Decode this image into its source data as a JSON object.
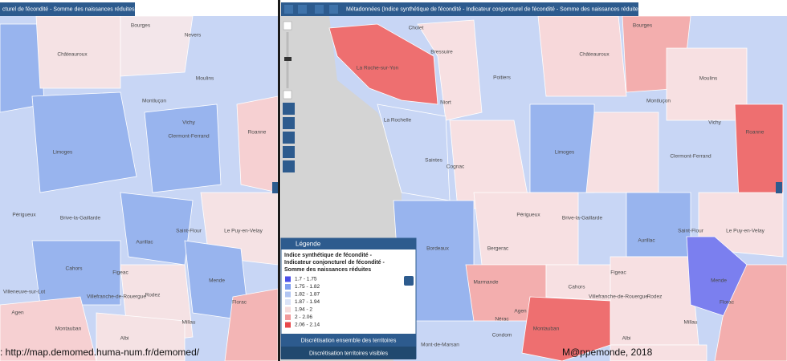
{
  "left_toolbar": {
    "title": "cturel de fécondité - Somme des naissances réduites)"
  },
  "right_toolbar": {
    "title": "Métadonnées (Indice synthétique de fécondité - Indicateur conjoncturel de fécondité - Somme des naissances réduites)"
  },
  "left_map": {
    "places": [
      "Bourges",
      "Nevers",
      "Châteauroux",
      "Moulins",
      "Montluçon",
      "Vichy",
      "Roanne",
      "Limoges",
      "Clermont-Ferrand",
      "Périgueux",
      "Brive-la-Gaillarde",
      "Aurillac",
      "Saint-Flour",
      "Le Puy-en-Velay",
      "Cahors",
      "Mende",
      "Rodez",
      "Villeneuve-sur-Lot",
      "Villefranche-de-Rouergue",
      "Agen",
      "Montauban",
      "Albi",
      "Millau",
      "Florac",
      "Figeac"
    ]
  },
  "right_map": {
    "places": [
      "Cholet",
      "La Roche-sur-Yon",
      "Bressuire",
      "Niort",
      "Poitiers",
      "Châteauroux",
      "Bourges",
      "Moulins",
      "Montluçon",
      "Vichy",
      "La Rochelle",
      "Saintes",
      "Cognac",
      "Limoges",
      "Clermont-Ferrand",
      "Roanne",
      "Périgueux",
      "Brive-la-Gaillarde",
      "Bergerac",
      "Bordeaux",
      "Aurillac",
      "Saint-Flour",
      "Le Puy-en-Velay",
      "Marmande",
      "Cahors",
      "Figeac",
      "Mende",
      "Rodez",
      "Villefranche-de-Rouergue",
      "Agen",
      "Nérac",
      "Montauban",
      "Condom",
      "Albi",
      "Millau",
      "Mont-de-Marsan",
      "Florac"
    ]
  },
  "legend": {
    "header": "Légende",
    "title": "Indice synthétique de fécondité - Indicateur conjoncturel de fécondité - Somme des naissances réduites",
    "classes": [
      "1.7 - 1.75",
      "1.75 - 1.82",
      "1.82 - 1.87",
      "1.87 - 1.94",
      "1.94 - 2",
      "2 - 2.06",
      "2.06 - 2.14"
    ]
  },
  "buttons": [
    "Discrétisation ensemble des territoires",
    "Discrétisation territoires visibles"
  ],
  "footer": {
    "source": ": http://map.demomed.huma-num.fr/demomed/",
    "credit": "M@ppemonde, 2018"
  }
}
